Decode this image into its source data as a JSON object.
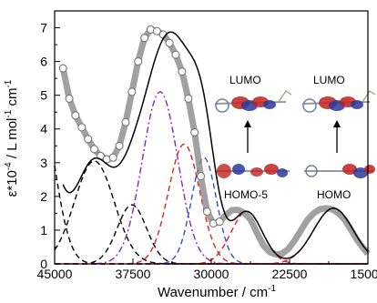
{
  "chart_data": {
    "type": "line",
    "title": "",
    "xlabel": "Wavenumber / cm",
    "xlabel_sup": "-1",
    "ylabel": "ε*10",
    "ylabel_sup": "-4",
    "ylabel_rest": "/ L mol",
    "ylabel_sup2": "-1",
    "ylabel_end": "cm",
    "ylabel_sup3": "-1",
    "xlim": [
      45000,
      15000
    ],
    "ylim": [
      0,
      7.5
    ],
    "x_ticks": [
      45000,
      37500,
      30000,
      22500,
      15000
    ],
    "x_tick_labels": [
      "45000",
      "37500",
      "30000",
      "22500",
      "15000"
    ],
    "y_ticks": [
      0,
      1,
      2,
      3,
      4,
      5,
      6,
      7
    ],
    "y_tick_labels": [
      "0",
      "1",
      "2",
      "3",
      "4",
      "5",
      "6",
      "7"
    ],
    "gaussians": [
      {
        "center": 46500,
        "height": 4.8,
        "sigma": 1500,
        "color": "#000000",
        "dash": "dashed"
      },
      {
        "center": 41200,
        "height": 3.05,
        "sigma": 1900,
        "color": "#000000",
        "dash": "dashed"
      },
      {
        "center": 37600,
        "height": 1.75,
        "sigma": 1400,
        "color": "#000000",
        "dash": "dashed"
      },
      {
        "center": 34900,
        "height": 5.1,
        "sigma": 1700,
        "color": "#7b2fb5",
        "dash": "dashdot"
      },
      {
        "center": 32600,
        "height": 3.55,
        "sigma": 1500,
        "color": "#e02020",
        "dash": "dashed"
      },
      {
        "center": 30700,
        "height": 3.15,
        "sigma": 1200,
        "color": "#3050c8",
        "dash": "dashed"
      },
      {
        "center": 26600,
        "height": 1.55,
        "sigma": 1500,
        "color": "#e02020",
        "dash": "dashed"
      },
      {
        "center": 18300,
        "height": 1.65,
        "sigma": 1900,
        "color": "#e02020",
        "dash": "dashed"
      }
    ],
    "series": [
      {
        "name": "",
        "style": "experimental-circles",
        "x": [
          44200,
          43600,
          43000,
          42400,
          41800,
          41200,
          40600,
          40000,
          39400,
          38800,
          38200,
          37600,
          37000,
          36400,
          35800,
          35200,
          34600,
          34000,
          33400,
          32800,
          32200,
          31600,
          31000,
          30400,
          29800,
          29200,
          28600,
          28000,
          27400,
          26800,
          26200,
          25600,
          25000,
          24400,
          23800,
          23200,
          22600,
          22000,
          21400,
          20800,
          20200,
          19600,
          19000,
          18400,
          17800,
          17200,
          16600,
          16000,
          15400,
          15000
        ],
        "y": [
          5.8,
          4.9,
          4.4,
          4.05,
          3.7,
          3.4,
          3.2,
          3.1,
          3.15,
          3.5,
          4.2,
          5.1,
          6.0,
          6.7,
          6.95,
          6.9,
          6.8,
          6.55,
          6.2,
          5.7,
          4.9,
          3.9,
          2.6,
          1.55,
          1.2,
          1.25,
          1.45,
          1.6,
          1.6,
          1.5,
          1.3,
          0.9,
          0.55,
          0.35,
          0.28,
          0.3,
          0.45,
          0.7,
          1.0,
          1.3,
          1.5,
          1.62,
          1.65,
          1.62,
          1.5,
          1.3,
          1.0,
          0.7,
          0.45,
          0.3
        ]
      },
      {
        "name": "",
        "style": "fit-solid-black",
        "x": [],
        "y": []
      }
    ],
    "annotations": [
      {
        "text": "LUMO"
      },
      {
        "text": "LUMO"
      },
      {
        "text": "HOMO-5"
      },
      {
        "text": "HOMO"
      }
    ],
    "grid": false,
    "legend": "none"
  }
}
